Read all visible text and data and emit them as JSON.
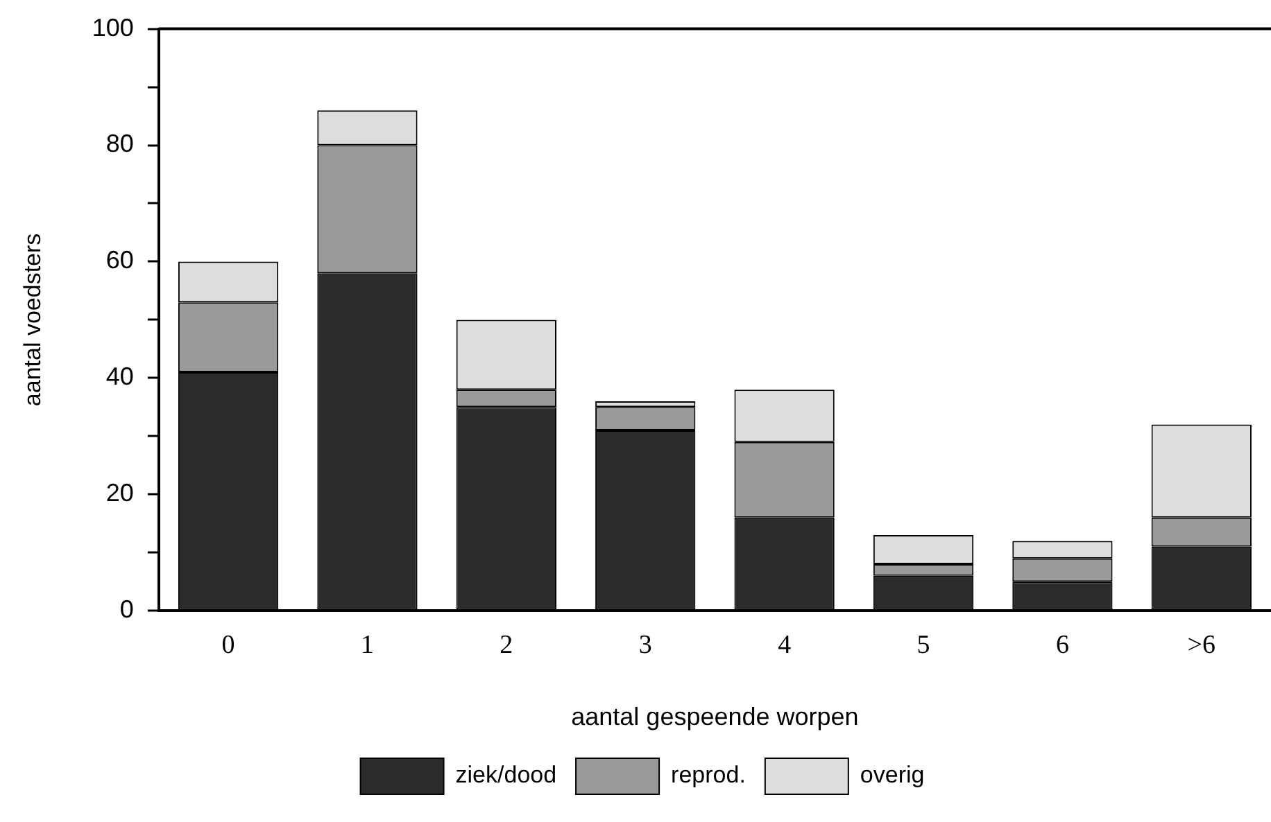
{
  "chart_data": {
    "type": "bar",
    "stacked": true,
    "xlabel": "aantal gespeende worpen",
    "ylabel": "aantal voedsters",
    "categories": [
      "0",
      "1",
      "2",
      "3",
      "4",
      "5",
      "6",
      ">6"
    ],
    "series": [
      {
        "name": "ziek/dood",
        "color": "#2b2b2b",
        "values": [
          41,
          58,
          35,
          31,
          16,
          6,
          5,
          11
        ]
      },
      {
        "name": "reprod.",
        "color": "#9a9a9a",
        "values": [
          12,
          22,
          3,
          4,
          13,
          2,
          4,
          5
        ]
      },
      {
        "name": "overig",
        "color": "#dddddd",
        "values": [
          7,
          6,
          12,
          1,
          9,
          5,
          3,
          16
        ]
      }
    ],
    "ylim": [
      0,
      100
    ],
    "yticks": [
      0,
      {
        "value": 10,
        "label": null
      },
      20,
      {
        "value": 30,
        "label": null
      },
      40,
      {
        "value": 50,
        "label": null
      },
      60,
      {
        "value": 70,
        "label": null
      },
      80,
      {
        "value": 90,
        "label": null
      },
      100
    ],
    "grid": false,
    "legend": "bottom"
  }
}
